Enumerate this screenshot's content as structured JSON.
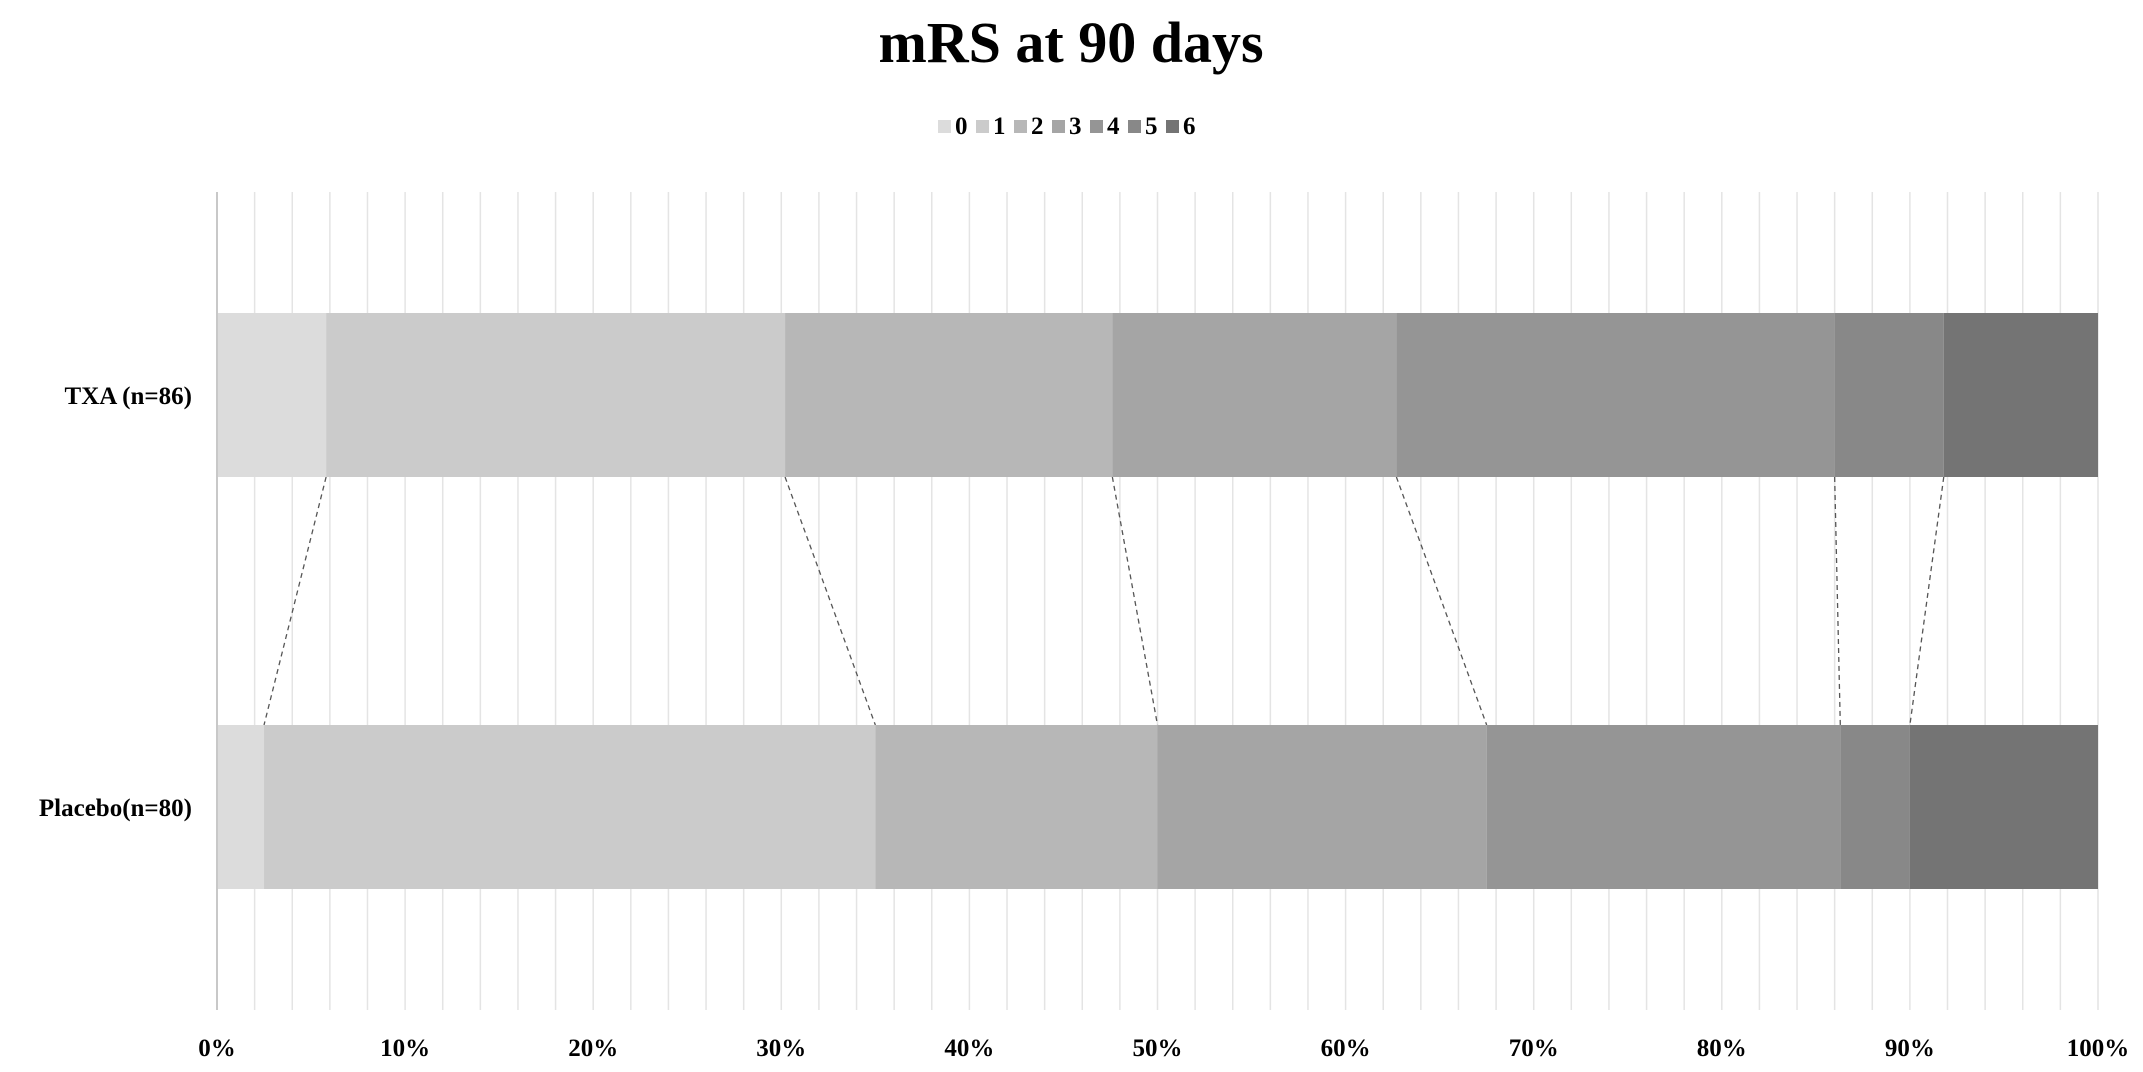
{
  "chart_data": {
    "type": "bar",
    "orientation": "horizontal",
    "stacked": "percent",
    "title": "mRS at 90 days",
    "xlabel": "",
    "ylabel": "",
    "xlim": [
      0,
      100
    ],
    "x_ticks": [
      "0%",
      "10%",
      "20%",
      "30%",
      "40%",
      "50%",
      "60%",
      "70%",
      "80%",
      "90%",
      "100%"
    ],
    "grid": true,
    "legend_position": "top-center",
    "categories": [
      "TXA (n=86)",
      "Placebo(n=80)"
    ],
    "series": [
      {
        "name": "0",
        "color": "#dcdcdc",
        "values": [
          5.8,
          2.5
        ]
      },
      {
        "name": "1",
        "color": "#cbcbcb",
        "values": [
          24.4,
          32.5
        ]
      },
      {
        "name": "2",
        "color": "#b7b7b7",
        "values": [
          17.4,
          15.0
        ]
      },
      {
        "name": "3",
        "color": "#a5a5a5",
        "values": [
          15.1,
          17.5
        ]
      },
      {
        "name": "4",
        "color": "#959595",
        "values": [
          23.3,
          18.8
        ]
      },
      {
        "name": "5",
        "color": "#888888",
        "values": [
          5.8,
          3.7
        ]
      },
      {
        "name": "6",
        "color": "#747474",
        "values": [
          8.2,
          10.0
        ]
      }
    ],
    "connector_lines": "dashed"
  }
}
